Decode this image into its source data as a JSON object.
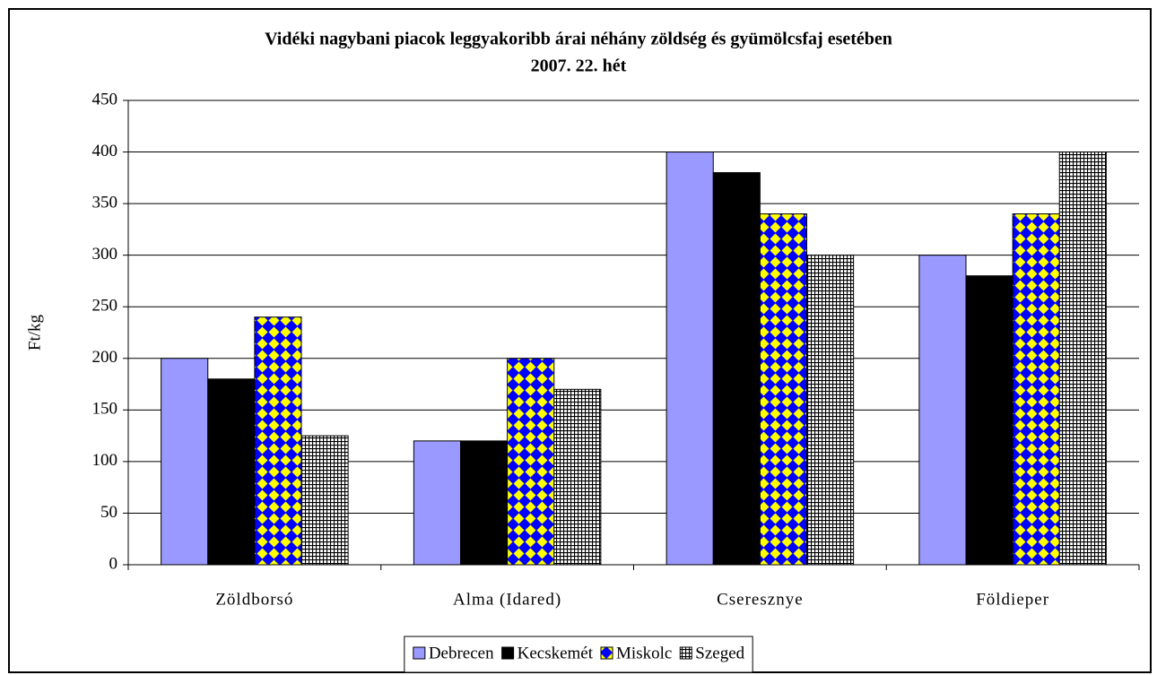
{
  "chart_data": {
    "type": "bar",
    "title": "Vidéki nagybani piacok leggyakoribb árai néhány zöldség és gyümölcsfaj esetében",
    "subtitle": "2007. 22. hét",
    "y_label": "Ft/kg",
    "categories": [
      "Zöldborsó",
      "Alma (Idared)",
      "Cseresznye",
      "Földieper"
    ],
    "series": [
      {
        "name": "Debrecen",
        "color": "#9999ff",
        "values": [
          200,
          120,
          400,
          300
        ]
      },
      {
        "name": "Kecskemét",
        "color": "#000000",
        "values": [
          180,
          120,
          380,
          280
        ]
      },
      {
        "name": "Miskolc",
        "color": "#0000ff",
        "pattern": "diamond",
        "pattern_color": "#ffff00",
        "values": [
          240,
          200,
          340,
          340
        ]
      },
      {
        "name": "Szeged",
        "color": "#ffffff",
        "pattern": "grid",
        "pattern_color": "#000000",
        "values": [
          125,
          170,
          300,
          400
        ]
      }
    ],
    "ylim": [
      0,
      450
    ],
    "yticks": [
      0,
      50,
      100,
      150,
      200,
      250,
      300,
      350,
      400,
      450
    ],
    "grid": true,
    "legend": "bottom"
  }
}
